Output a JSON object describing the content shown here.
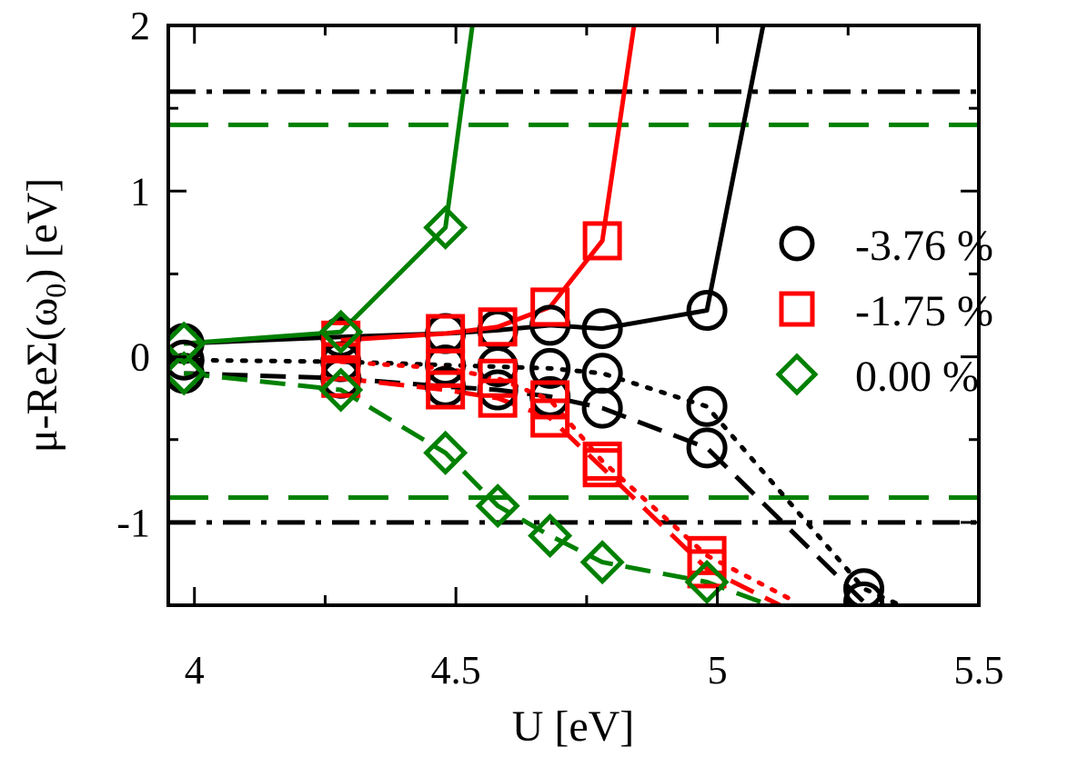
{
  "chart_data": {
    "type": "line",
    "xlabel": "U [eV]",
    "ylabel": "μ-ReΣ(ω",
    "ylabel_sub": "0",
    "ylabel_tail": ") [eV]",
    "xlim": [
      3.95,
      5.5
    ],
    "ylim": [
      -1.5,
      2.0
    ],
    "xticks": [
      4,
      4.5,
      5,
      5.5
    ],
    "xtick_labels": [
      "4",
      "4.5",
      "5",
      "5.5"
    ],
    "yticks": [
      -1,
      0,
      1,
      2
    ],
    "ytick_labels": [
      "-1",
      "0",
      "1",
      "2"
    ],
    "grid": false,
    "legend_position": "right",
    "colors": {
      "black": "#000000",
      "red": "#ff0000",
      "green": "#008000"
    },
    "series": [
      {
        "name": "-3.76 %",
        "color": "#000000",
        "marker": "circle",
        "solid": [
          [
            3.98,
            0.08
          ],
          [
            4.28,
            0.12
          ],
          [
            4.48,
            0.14
          ],
          [
            4.58,
            0.16
          ],
          [
            4.68,
            0.19
          ],
          [
            4.78,
            0.17
          ],
          [
            4.98,
            0.28
          ],
          [
            5.1,
            2.2
          ]
        ],
        "dotted": [
          [
            3.98,
            -0.02
          ],
          [
            4.28,
            -0.03
          ],
          [
            4.48,
            -0.05
          ],
          [
            4.58,
            -0.06
          ],
          [
            4.68,
            -0.07
          ],
          [
            4.78,
            -0.1
          ],
          [
            4.98,
            -0.3
          ],
          [
            5.28,
            -1.4
          ],
          [
            5.35,
            -1.5
          ]
        ],
        "dashed": [
          [
            3.98,
            -0.1
          ],
          [
            4.28,
            -0.13
          ],
          [
            4.48,
            -0.18
          ],
          [
            4.58,
            -0.2
          ],
          [
            4.68,
            -0.24
          ],
          [
            4.78,
            -0.31
          ],
          [
            4.98,
            -0.55
          ],
          [
            5.28,
            -1.48
          ],
          [
            5.3,
            -1.5
          ]
        ],
        "hlines_dashdot": [
          1.6,
          -1.0
        ]
      },
      {
        "name": "-1.75 %",
        "color": "#ff0000",
        "marker": "square",
        "solid": [
          [
            4.28,
            0.1
          ],
          [
            4.48,
            0.14
          ],
          [
            4.58,
            0.18
          ],
          [
            4.68,
            0.3
          ],
          [
            4.78,
            0.7
          ],
          [
            4.85,
            2.2
          ]
        ],
        "dotted": [
          [
            4.28,
            -0.03
          ],
          [
            4.48,
            -0.07
          ],
          [
            4.58,
            -0.13
          ],
          [
            4.68,
            -0.26
          ],
          [
            4.78,
            -0.63
          ],
          [
            4.98,
            -1.2
          ],
          [
            5.15,
            -1.48
          ]
        ],
        "dashed": [
          [
            4.28,
            -0.13
          ],
          [
            4.48,
            -0.2
          ],
          [
            4.58,
            -0.25
          ],
          [
            4.68,
            -0.37
          ],
          [
            4.78,
            -0.67
          ],
          [
            4.98,
            -1.28
          ],
          [
            5.12,
            -1.5
          ]
        ]
      },
      {
        "name": "0.00 %",
        "color": "#008000",
        "marker": "diamond",
        "solid": [
          [
            3.98,
            0.08
          ],
          [
            4.28,
            0.15
          ],
          [
            4.48,
            0.78
          ],
          [
            4.54,
            2.2
          ]
        ],
        "dashed": [
          [
            3.98,
            -0.1
          ],
          [
            4.28,
            -0.2
          ],
          [
            4.48,
            -0.58
          ],
          [
            4.58,
            -0.9
          ],
          [
            4.68,
            -1.08
          ],
          [
            4.78,
            -1.24
          ],
          [
            4.98,
            -1.36
          ],
          [
            5.1,
            -1.5
          ]
        ],
        "hlines_dashed": [
          1.4,
          -0.85
        ]
      }
    ]
  }
}
